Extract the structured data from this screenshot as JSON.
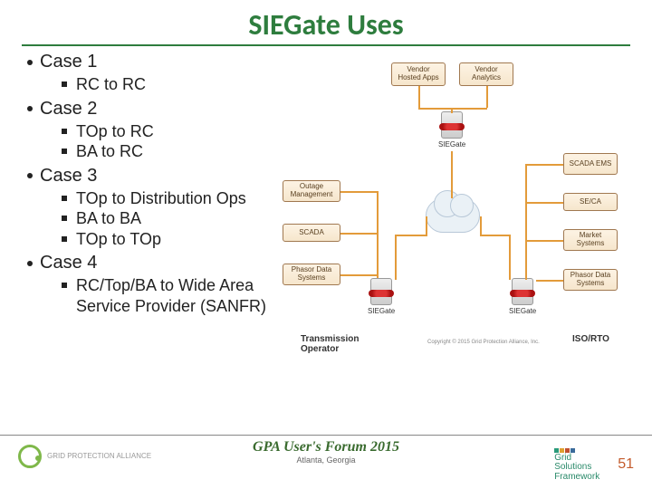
{
  "title": "SIEGate Uses",
  "cases": [
    {
      "label": "Case 1",
      "items": [
        "RC to RC"
      ]
    },
    {
      "label": "Case 2",
      "items": [
        "TOp to RC",
        "BA to RC"
      ]
    },
    {
      "label": "Case 3",
      "items": [
        "TOp to Distribution Ops",
        "BA to BA",
        "TOp to TOp"
      ]
    },
    {
      "label": "Case 4",
      "items": [
        "RC/Top/BA  to Wide Area Service Provider (SANFR)"
      ]
    }
  ],
  "diagram": {
    "top_boxes": [
      "Vendor Hosted Apps",
      "Vendor Analytics"
    ],
    "left_boxes": [
      "Outage Management",
      "SCADA",
      "Phasor Data Systems"
    ],
    "right_boxes": [
      "SCADA EMS",
      "SE/CA",
      "Market Systems",
      "Phasor Data Systems"
    ],
    "gateway_label": "SIEGate",
    "left_region": "Transmission Operator",
    "right_region": "ISO/RTO",
    "copyright": "Copyright © 2015 Grid Protection Alliance, Inc."
  },
  "footer": {
    "forum": "GPA User's Forum 2015",
    "location": "Atlanta, Georgia",
    "gpa": "GRID PROTECTION ALLIANCE",
    "gsf": "Grid Solutions Framework",
    "page": "51",
    "gsf_colors": [
      "#2a9a7a",
      "#e0a030",
      "#c05030",
      "#3a6a9a"
    ]
  },
  "colors": {
    "accent": "#2e7d3e",
    "box_border": "#a07850",
    "arrow": "#e39b3a"
  }
}
